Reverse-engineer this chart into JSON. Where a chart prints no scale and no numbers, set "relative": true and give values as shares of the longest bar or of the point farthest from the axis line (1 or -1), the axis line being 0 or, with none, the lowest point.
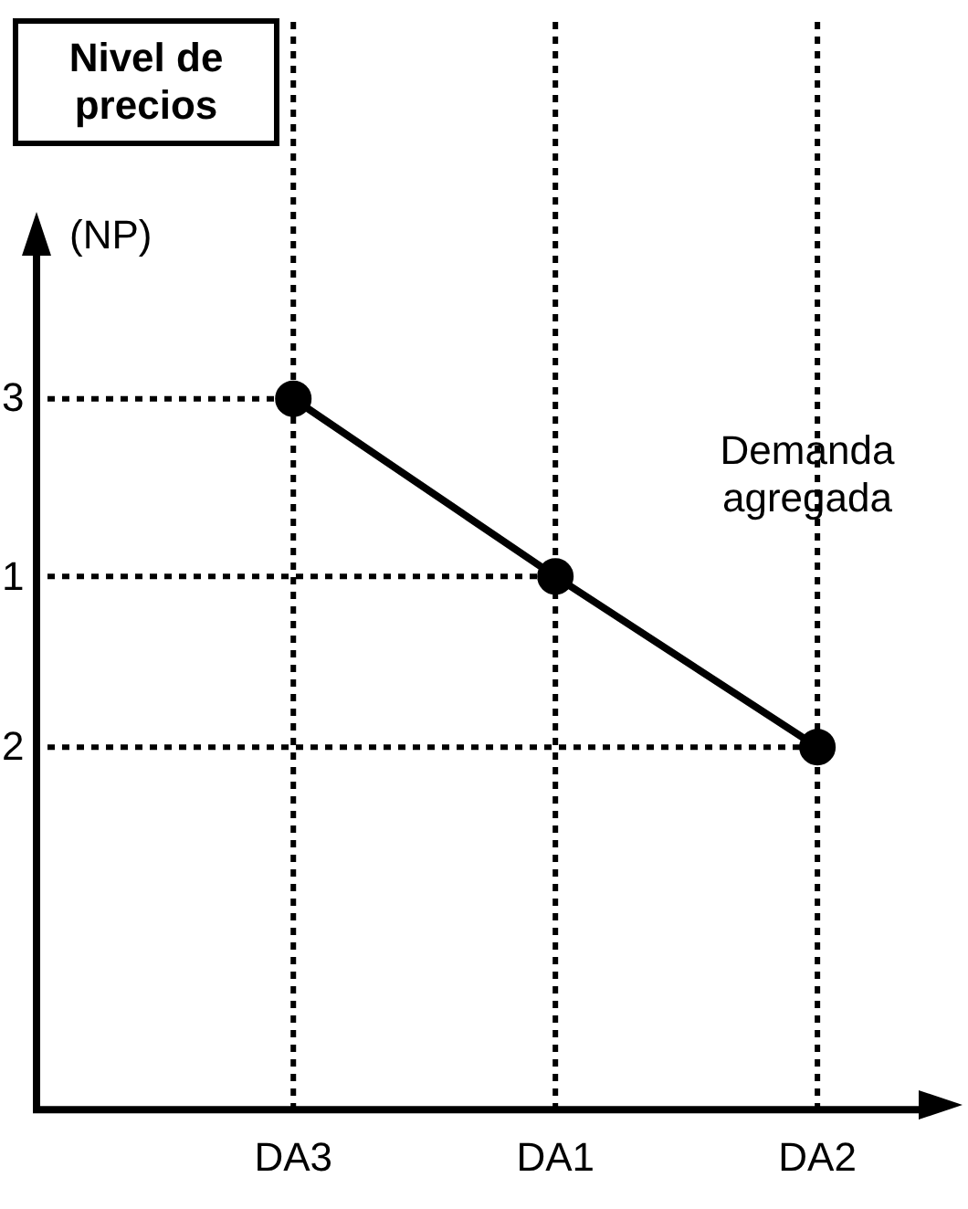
{
  "chart_data": {
    "type": "line",
    "annotations": [
      "Nivel de precios",
      "(NP)",
      "Demanda agregada",
      "3",
      "1",
      "2"
    ],
    "categories": [
      "DA3",
      "DA1",
      "DA2"
    ],
    "series": [
      {
        "color": "#000000",
        "values": [
          1,
          0.75,
          0.51
        ]
      }
    ],
    "relative": true,
    "marker": "circle",
    "line_style": "solid",
    "legend": false,
    "grid": false,
    "ref_lines": [
      {
        "axis": "y",
        "value": 1,
        "line_style": "dotted"
      },
      {
        "axis": "y",
        "value": 0.75,
        "line_style": "dotted"
      },
      {
        "axis": "y",
        "value": 0.51,
        "line_style": "dotted"
      },
      {
        "axis": "x",
        "value": "DA3",
        "line_style": "dotted"
      },
      {
        "axis": "x",
        "value": "DA1",
        "line_style": "dotted"
      },
      {
        "axis": "x",
        "value": "DA2",
        "line_style": "dotted"
      }
    ]
  }
}
